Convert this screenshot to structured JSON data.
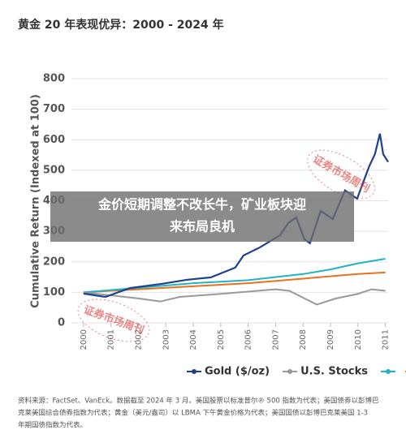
{
  "chart_data": {
    "type": "line",
    "title": "黄金 20 年表现优异：2000 - 2024 年",
    "y_label": "Cumulative Return (Indexed at 100)",
    "xlim": [
      1999.56,
      2011.1
    ],
    "xticks": [
      2000,
      2001,
      2002,
      2003,
      2004,
      2005,
      2006,
      2007,
      2008,
      2009,
      2010,
      2011
    ],
    "ylim": [
      0,
      800
    ],
    "yticks": [
      0,
      100,
      200,
      300,
      400,
      500,
      600,
      700,
      800
    ],
    "grid": true,
    "series": [
      {
        "name": "Gold ($/oz)",
        "color": "#1f3f8f",
        "x": [
          2000,
          2000.8,
          2001.69,
          2002.87,
          2003.76,
          2004.64,
          2005.53,
          2005.83,
          2006.42,
          2007.16,
          2007.46,
          2007.75,
          2008.05,
          2008.25,
          2008.64,
          2009.08,
          2009.53,
          2009.97,
          2010.41,
          2010.62,
          2010.8,
          2010.92,
          2011.1
        ],
        "values": [
          96,
          85,
          114,
          128,
          141,
          149,
          181,
          221,
          247,
          287,
          327,
          346,
          274,
          261,
          367,
          340,
          434,
          407,
          513,
          553,
          620,
          553,
          527
        ]
      },
      {
        "name": "U.S. Stocks",
        "color": "#999999",
        "x": [
          2000,
          2001,
          2002,
          2002.8,
          2003.5,
          2005,
          2007,
          2007.5,
          2008.5,
          2009.2,
          2010,
          2010.5,
          2011
        ],
        "values": [
          100,
          90,
          80,
          70,
          85,
          95,
          110,
          105,
          60,
          80,
          95,
          110,
          105
        ]
      },
      {
        "color": "#1fb5c4",
        "x": [
          2000,
          2002,
          2004,
          2006,
          2008,
          2009,
          2010,
          2011
        ],
        "values": [
          100,
          115,
          130,
          140,
          160,
          175,
          195,
          210
        ]
      },
      {
        "color": "#e8711c",
        "x": [
          2000,
          2002,
          2004,
          2006,
          2008,
          2010,
          2011
        ],
        "values": [
          100,
          110,
          120,
          130,
          145,
          160,
          165
        ]
      }
    ],
    "footnote": [
      "资料来源：FactSet、VanEck。数据截至 2024 年 3 月。美国股票以标准普尔® 500 指数为代表；美国债券以彭博巴",
      "克莱美国综合债券指数为代表；黄金（美元/盎司）以 LBMA 下午黄金价格为代表；美国国债以彭博巴克莱美国 1-3",
      "年期国债指数为代表。"
    ],
    "watermark": "证券市场周刊",
    "banner": [
      "金价短期调整不改长牛，矿业板块迎",
      "来布局良机"
    ]
  }
}
